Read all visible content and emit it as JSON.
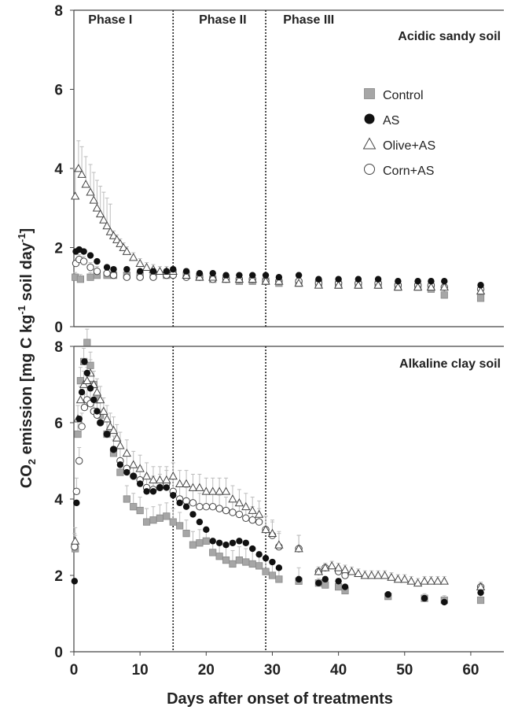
{
  "chart_data": [
    {
      "type": "scatter",
      "title": "Acidic sandy soil",
      "phases": [
        "Phase I",
        "Phase II",
        "Phase III"
      ],
      "phase_boundaries": [
        15,
        29
      ],
      "ylim": [
        0,
        8
      ],
      "yticks": [
        0,
        2,
        4,
        6,
        8
      ],
      "xlim": [
        0,
        65
      ],
      "xticks": [
        0,
        10,
        20,
        30,
        40,
        50,
        60
      ],
      "xticks_shown": false,
      "series": [
        {
          "name": "Control",
          "marker": "square",
          "x": [
            0.2,
            1,
            2.5,
            3.5,
            5,
            6,
            8,
            10,
            12,
            14,
            15,
            17,
            19,
            21,
            23,
            25,
            27,
            29,
            31,
            34,
            37,
            40,
            43,
            46,
            49,
            52,
            54,
            56,
            61.5
          ],
          "y": [
            1.25,
            1.2,
            1.25,
            1.3,
            1.3,
            1.3,
            1.3,
            1.3,
            1.3,
            1.3,
            1.35,
            1.3,
            1.25,
            1.2,
            1.2,
            1.15,
            1.15,
            1.15,
            1.1,
            1.1,
            1.1,
            1.05,
            1.05,
            1.05,
            1.0,
            1.0,
            0.95,
            0.8,
            0.72
          ]
        },
        {
          "name": "AS",
          "marker": "circle-filled",
          "x": [
            0.3,
            0.8,
            1.5,
            2.5,
            3.5,
            5,
            6,
            8,
            10,
            12,
            14,
            15,
            17,
            19,
            21,
            23,
            25,
            27,
            29,
            31,
            34,
            37,
            40,
            43,
            46,
            49,
            52,
            54,
            56,
            61.5
          ],
          "y": [
            1.9,
            1.95,
            1.9,
            1.8,
            1.65,
            1.5,
            1.45,
            1.45,
            1.4,
            1.4,
            1.4,
            1.45,
            1.4,
            1.35,
            1.35,
            1.3,
            1.3,
            1.3,
            1.3,
            1.25,
            1.3,
            1.2,
            1.2,
            1.2,
            1.2,
            1.15,
            1.15,
            1.15,
            1.15,
            1.05
          ]
        },
        {
          "name": "Olive+AS",
          "marker": "triangle-open",
          "x": [
            0.2,
            0.7,
            1.2,
            1.8,
            2.5,
            3,
            3.5,
            4,
            4.5,
            5,
            5.5,
            6,
            6.5,
            7,
            7.5,
            8,
            9,
            10,
            11,
            12,
            13,
            14,
            15,
            17,
            19,
            21,
            23,
            25,
            27,
            29,
            31,
            34,
            37,
            40,
            43,
            46,
            49,
            52,
            54,
            56,
            61.5
          ],
          "y": [
            3.3,
            4.0,
            3.85,
            3.6,
            3.4,
            3.2,
            3.0,
            2.85,
            2.7,
            2.55,
            2.4,
            2.3,
            2.2,
            2.1,
            2.0,
            1.9,
            1.75,
            1.6,
            1.5,
            1.45,
            1.4,
            1.4,
            1.4,
            1.3,
            1.25,
            1.25,
            1.2,
            1.2,
            1.2,
            1.15,
            1.15,
            1.1,
            1.05,
            1.05,
            1.05,
            1.05,
            1.0,
            1.0,
            1.0,
            1.0,
            0.9
          ]
        },
        {
          "name": "Corn+AS",
          "marker": "circle-open",
          "x": [
            0.3,
            0.8,
            1.5,
            2.5,
            3.5,
            5,
            6,
            8,
            10,
            12,
            14,
            15,
            17,
            19,
            21,
            23,
            25,
            27,
            29,
            31,
            34,
            37,
            40,
            43,
            46,
            49,
            52,
            54,
            56,
            61.5
          ],
          "y": [
            1.6,
            1.7,
            1.65,
            1.5,
            1.4,
            1.35,
            1.3,
            1.25,
            1.25,
            1.25,
            1.3,
            1.3,
            1.25,
            1.25,
            1.2,
            1.2,
            1.2,
            1.2,
            1.15,
            1.15,
            1.15,
            1.1,
            1.1,
            1.1,
            1.1,
            1.05,
            1.05,
            1.05,
            1.0,
            0.95
          ]
        }
      ]
    },
    {
      "type": "scatter",
      "title": "Alkaline clay soil",
      "phase_boundaries": [
        15,
        29
      ],
      "ylim": [
        0,
        8
      ],
      "yticks": [
        0,
        2,
        4,
        6,
        8
      ],
      "xlim": [
        0,
        65
      ],
      "xticks": [
        0,
        10,
        20,
        30,
        40,
        50,
        60
      ],
      "xlabel": "Days after onset of treatments",
      "series": [
        {
          "name": "Control",
          "marker": "square",
          "x": [
            0.2,
            0.6,
            1,
            1.5,
            2,
            2.5,
            3,
            3.5,
            4,
            5,
            6,
            7,
            8,
            9,
            10,
            11,
            12,
            13,
            14,
            15,
            16,
            17,
            18,
            19,
            20,
            21,
            22,
            23,
            24,
            25,
            26,
            27,
            28,
            29,
            30,
            31,
            34,
            37,
            38,
            40,
            41,
            47.5,
            53,
            56,
            61.5
          ],
          "y": [
            2.7,
            5.7,
            7.1,
            7.6,
            8.1,
            7.5,
            7.0,
            6.6,
            6.2,
            5.7,
            5.2,
            4.7,
            4.0,
            3.8,
            3.7,
            3.4,
            3.45,
            3.5,
            3.55,
            3.4,
            3.3,
            3.1,
            2.8,
            2.85,
            2.9,
            2.6,
            2.5,
            2.4,
            2.3,
            2.4,
            2.35,
            2.3,
            2.25,
            2.1,
            2.0,
            1.9,
            1.85,
            1.8,
            1.75,
            1.7,
            1.6,
            1.45,
            1.4,
            1.35,
            1.35
          ]
        },
        {
          "name": "AS",
          "marker": "circle-filled",
          "x": [
            0.1,
            0.4,
            0.8,
            1.2,
            1.6,
            2,
            2.5,
            3,
            3.5,
            4,
            5,
            6,
            7,
            8,
            9,
            10,
            11,
            12,
            13,
            14,
            15,
            16,
            17,
            18,
            19,
            20,
            21,
            22,
            23,
            24,
            25,
            26,
            27,
            28,
            29,
            30,
            31,
            34,
            37,
            38,
            40,
            41,
            47.5,
            53,
            56,
            61.5
          ],
          "y": [
            1.85,
            3.9,
            6.1,
            6.8,
            7.6,
            7.3,
            6.9,
            6.6,
            6.3,
            6.0,
            5.7,
            5.3,
            4.9,
            4.7,
            4.6,
            4.4,
            4.2,
            4.2,
            4.3,
            4.3,
            4.1,
            3.9,
            3.8,
            3.6,
            3.4,
            3.2,
            2.9,
            2.85,
            2.8,
            2.85,
            2.9,
            2.85,
            2.7,
            2.55,
            2.45,
            2.35,
            2.2,
            1.9,
            1.8,
            1.9,
            1.85,
            1.7,
            1.5,
            1.4,
            1.3,
            1.55
          ]
        },
        {
          "name": "Olive+AS",
          "marker": "triangle-open",
          "x": [
            0.2,
            0.6,
            1,
            1.5,
            2,
            2.5,
            3,
            3.5,
            4,
            4.5,
            5,
            5.5,
            6,
            6.5,
            7,
            8,
            9,
            10,
            11,
            12,
            13,
            14,
            15,
            16,
            17,
            18,
            19,
            20,
            21,
            22,
            23,
            24,
            25,
            26,
            27,
            28,
            29,
            30,
            31,
            34,
            37,
            38,
            39,
            40,
            41,
            42,
            43,
            44,
            45,
            46,
            47,
            48,
            49,
            50,
            51,
            52,
            53,
            54,
            55,
            56,
            61.5
          ],
          "y": [
            2.9,
            6.1,
            6.6,
            7.0,
            7.1,
            7.3,
            7.0,
            6.8,
            6.6,
            6.3,
            6.1,
            5.9,
            5.8,
            5.6,
            5.4,
            5.2,
            4.9,
            4.8,
            4.6,
            4.5,
            4.5,
            4.5,
            4.6,
            4.4,
            4.4,
            4.3,
            4.3,
            4.2,
            4.2,
            4.2,
            4.2,
            4.0,
            3.9,
            3.8,
            3.7,
            3.6,
            3.2,
            3.1,
            2.8,
            2.7,
            2.1,
            2.2,
            2.25,
            2.2,
            2.15,
            2.1,
            2.05,
            2.0,
            2.0,
            2.0,
            2.0,
            1.95,
            1.9,
            1.9,
            1.85,
            1.8,
            1.85,
            1.85,
            1.85,
            1.85,
            1.7
          ]
        },
        {
          "name": "Corn+AS",
          "marker": "circle-open",
          "x": [
            0.1,
            0.4,
            0.8,
            1.2,
            1.6,
            2,
            2.5,
            3,
            3.5,
            4,
            5,
            6,
            7,
            8,
            9,
            10,
            11,
            12,
            13,
            14,
            15,
            16,
            17,
            18,
            19,
            20,
            21,
            22,
            23,
            24,
            25,
            26,
            27,
            28,
            29,
            30,
            31,
            34,
            37,
            38,
            40,
            41,
            61.5
          ],
          "y": [
            2.75,
            4.2,
            5.0,
            5.9,
            6.4,
            6.6,
            6.5,
            6.3,
            6.2,
            6.0,
            5.7,
            5.3,
            5.0,
            4.8,
            4.6,
            4.5,
            4.3,
            4.25,
            4.3,
            4.4,
            4.2,
            4.0,
            3.95,
            3.9,
            3.8,
            3.8,
            3.8,
            3.75,
            3.7,
            3.65,
            3.6,
            3.5,
            3.45,
            3.4,
            3.2,
            3.05,
            2.75,
            2.7,
            2.1,
            2.2,
            2.1,
            2.0,
            1.7
          ]
        }
      ]
    }
  ],
  "shared": {
    "ylabel_main": "CO",
    "ylabel_sub": "2",
    "ylabel_rest": " emission [mg C kg",
    "ylabel_sup1": "-1",
    "ylabel_mid": " soil day",
    "ylabel_sup2": "-1",
    "ylabel_end": "]"
  },
  "legend": [
    {
      "label": "Control",
      "marker": "square"
    },
    {
      "label": "AS",
      "marker": "circle-filled"
    },
    {
      "label": "Olive+AS",
      "marker": "triangle-open"
    },
    {
      "label": "Corn+AS",
      "marker": "circle-open"
    }
  ],
  "colors": {
    "control": "#a6a6a6",
    "as": "#111111",
    "open_stroke": "#444444",
    "error_bar": "#bdbdbd"
  }
}
